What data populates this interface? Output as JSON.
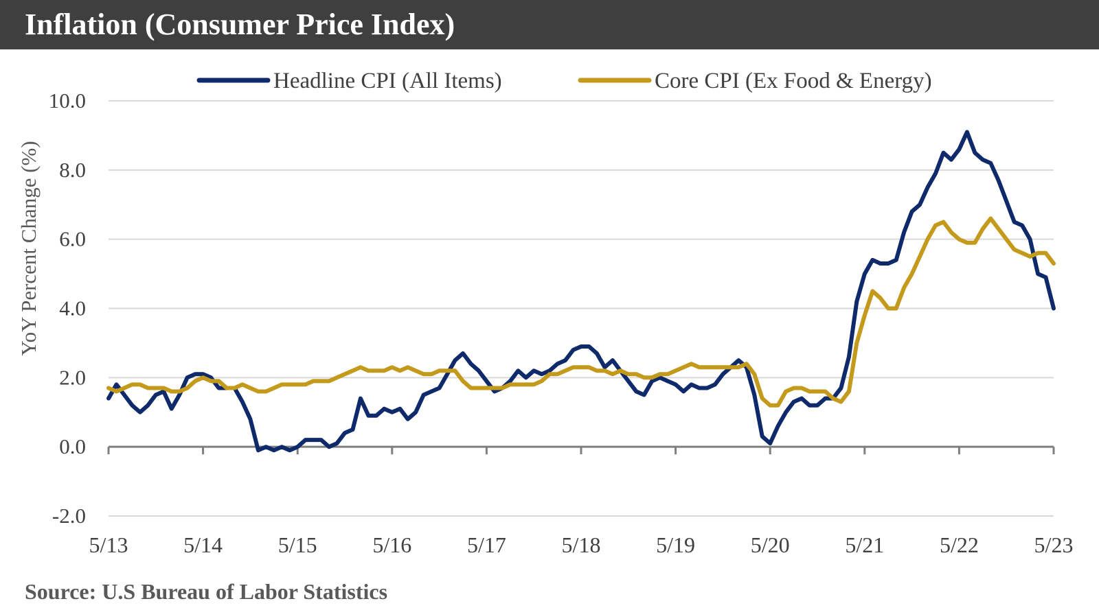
{
  "header": {
    "title": "Inflation (Consumer Price Index)"
  },
  "footer": {
    "source": "Source:  U.S Bureau of Labor Statistics"
  },
  "chart_data": {
    "type": "line",
    "title": "Inflation (Consumer Price Index)",
    "xlabel": "",
    "ylabel": "YoY Percent Change (%)",
    "ylim": [
      -2.0,
      10.0
    ],
    "yticks": [
      "-2.0",
      "0.0",
      "2.0",
      "4.0",
      "6.0",
      "8.0",
      "10.0"
    ],
    "xticks": [
      "5/13",
      "5/14",
      "5/15",
      "5/16",
      "5/17",
      "5/18",
      "5/19",
      "5/20",
      "5/21",
      "5/22",
      "5/23"
    ],
    "x_start": "2013-05",
    "x_end": "2023-05",
    "grid": true,
    "legend_position": "top",
    "series": [
      {
        "name": "Headline CPI (All Items)",
        "color": "#0f2a6b",
        "values": [
          1.4,
          1.8,
          1.5,
          1.2,
          1.0,
          1.2,
          1.5,
          1.6,
          1.1,
          1.5,
          2.0,
          2.1,
          2.1,
          2.0,
          1.7,
          1.7,
          1.7,
          1.3,
          0.8,
          -0.1,
          0.0,
          -0.1,
          0.0,
          -0.1,
          0.0,
          0.2,
          0.2,
          0.2,
          0.0,
          0.1,
          0.4,
          0.5,
          1.4,
          0.9,
          0.9,
          1.1,
          1.0,
          1.1,
          0.8,
          1.0,
          1.5,
          1.6,
          1.7,
          2.1,
          2.5,
          2.7,
          2.4,
          2.2,
          1.9,
          1.6,
          1.7,
          1.9,
          2.2,
          2.0,
          2.2,
          2.1,
          2.2,
          2.4,
          2.5,
          2.8,
          2.9,
          2.9,
          2.7,
          2.3,
          2.5,
          2.2,
          1.9,
          1.6,
          1.5,
          1.9,
          2.0,
          1.9,
          1.8,
          1.6,
          1.8,
          1.7,
          1.7,
          1.8,
          2.1,
          2.3,
          2.5,
          2.3,
          1.5,
          0.3,
          0.1,
          0.6,
          1.0,
          1.3,
          1.4,
          1.2,
          1.2,
          1.4,
          1.4,
          1.7,
          2.6,
          4.2,
          5.0,
          5.4,
          5.3,
          5.3,
          5.4,
          6.2,
          6.8,
          7.0,
          7.5,
          7.9,
          8.5,
          8.3,
          8.6,
          9.1,
          8.5,
          8.3,
          8.2,
          7.7,
          7.1,
          6.5,
          6.4,
          6.0,
          5.0,
          4.9,
          4.0
        ]
      },
      {
        "name": "Core CPI (Ex Food & Energy)",
        "color": "#c49a1c",
        "values": [
          1.7,
          1.6,
          1.7,
          1.8,
          1.8,
          1.7,
          1.7,
          1.7,
          1.6,
          1.6,
          1.7,
          1.9,
          2.0,
          1.9,
          1.9,
          1.7,
          1.7,
          1.8,
          1.7,
          1.6,
          1.6,
          1.7,
          1.8,
          1.8,
          1.8,
          1.8,
          1.9,
          1.9,
          1.9,
          2.0,
          2.1,
          2.2,
          2.3,
          2.2,
          2.2,
          2.2,
          2.3,
          2.2,
          2.3,
          2.2,
          2.1,
          2.1,
          2.2,
          2.2,
          2.2,
          1.9,
          1.7,
          1.7,
          1.7,
          1.7,
          1.7,
          1.8,
          1.8,
          1.8,
          1.8,
          1.9,
          2.1,
          2.1,
          2.2,
          2.3,
          2.3,
          2.3,
          2.2,
          2.2,
          2.1,
          2.2,
          2.1,
          2.1,
          2.0,
          2.0,
          2.1,
          2.1,
          2.2,
          2.3,
          2.4,
          2.3,
          2.3,
          2.3,
          2.3,
          2.3,
          2.3,
          2.4,
          2.1,
          1.4,
          1.2,
          1.2,
          1.6,
          1.7,
          1.7,
          1.6,
          1.6,
          1.6,
          1.4,
          1.3,
          1.6,
          3.0,
          3.8,
          4.5,
          4.3,
          4.0,
          4.0,
          4.6,
          5.0,
          5.5,
          6.0,
          6.4,
          6.5,
          6.2,
          6.0,
          5.9,
          5.9,
          6.3,
          6.6,
          6.3,
          6.0,
          5.7,
          5.6,
          5.5,
          5.6,
          5.6,
          5.3
        ]
      }
    ]
  }
}
